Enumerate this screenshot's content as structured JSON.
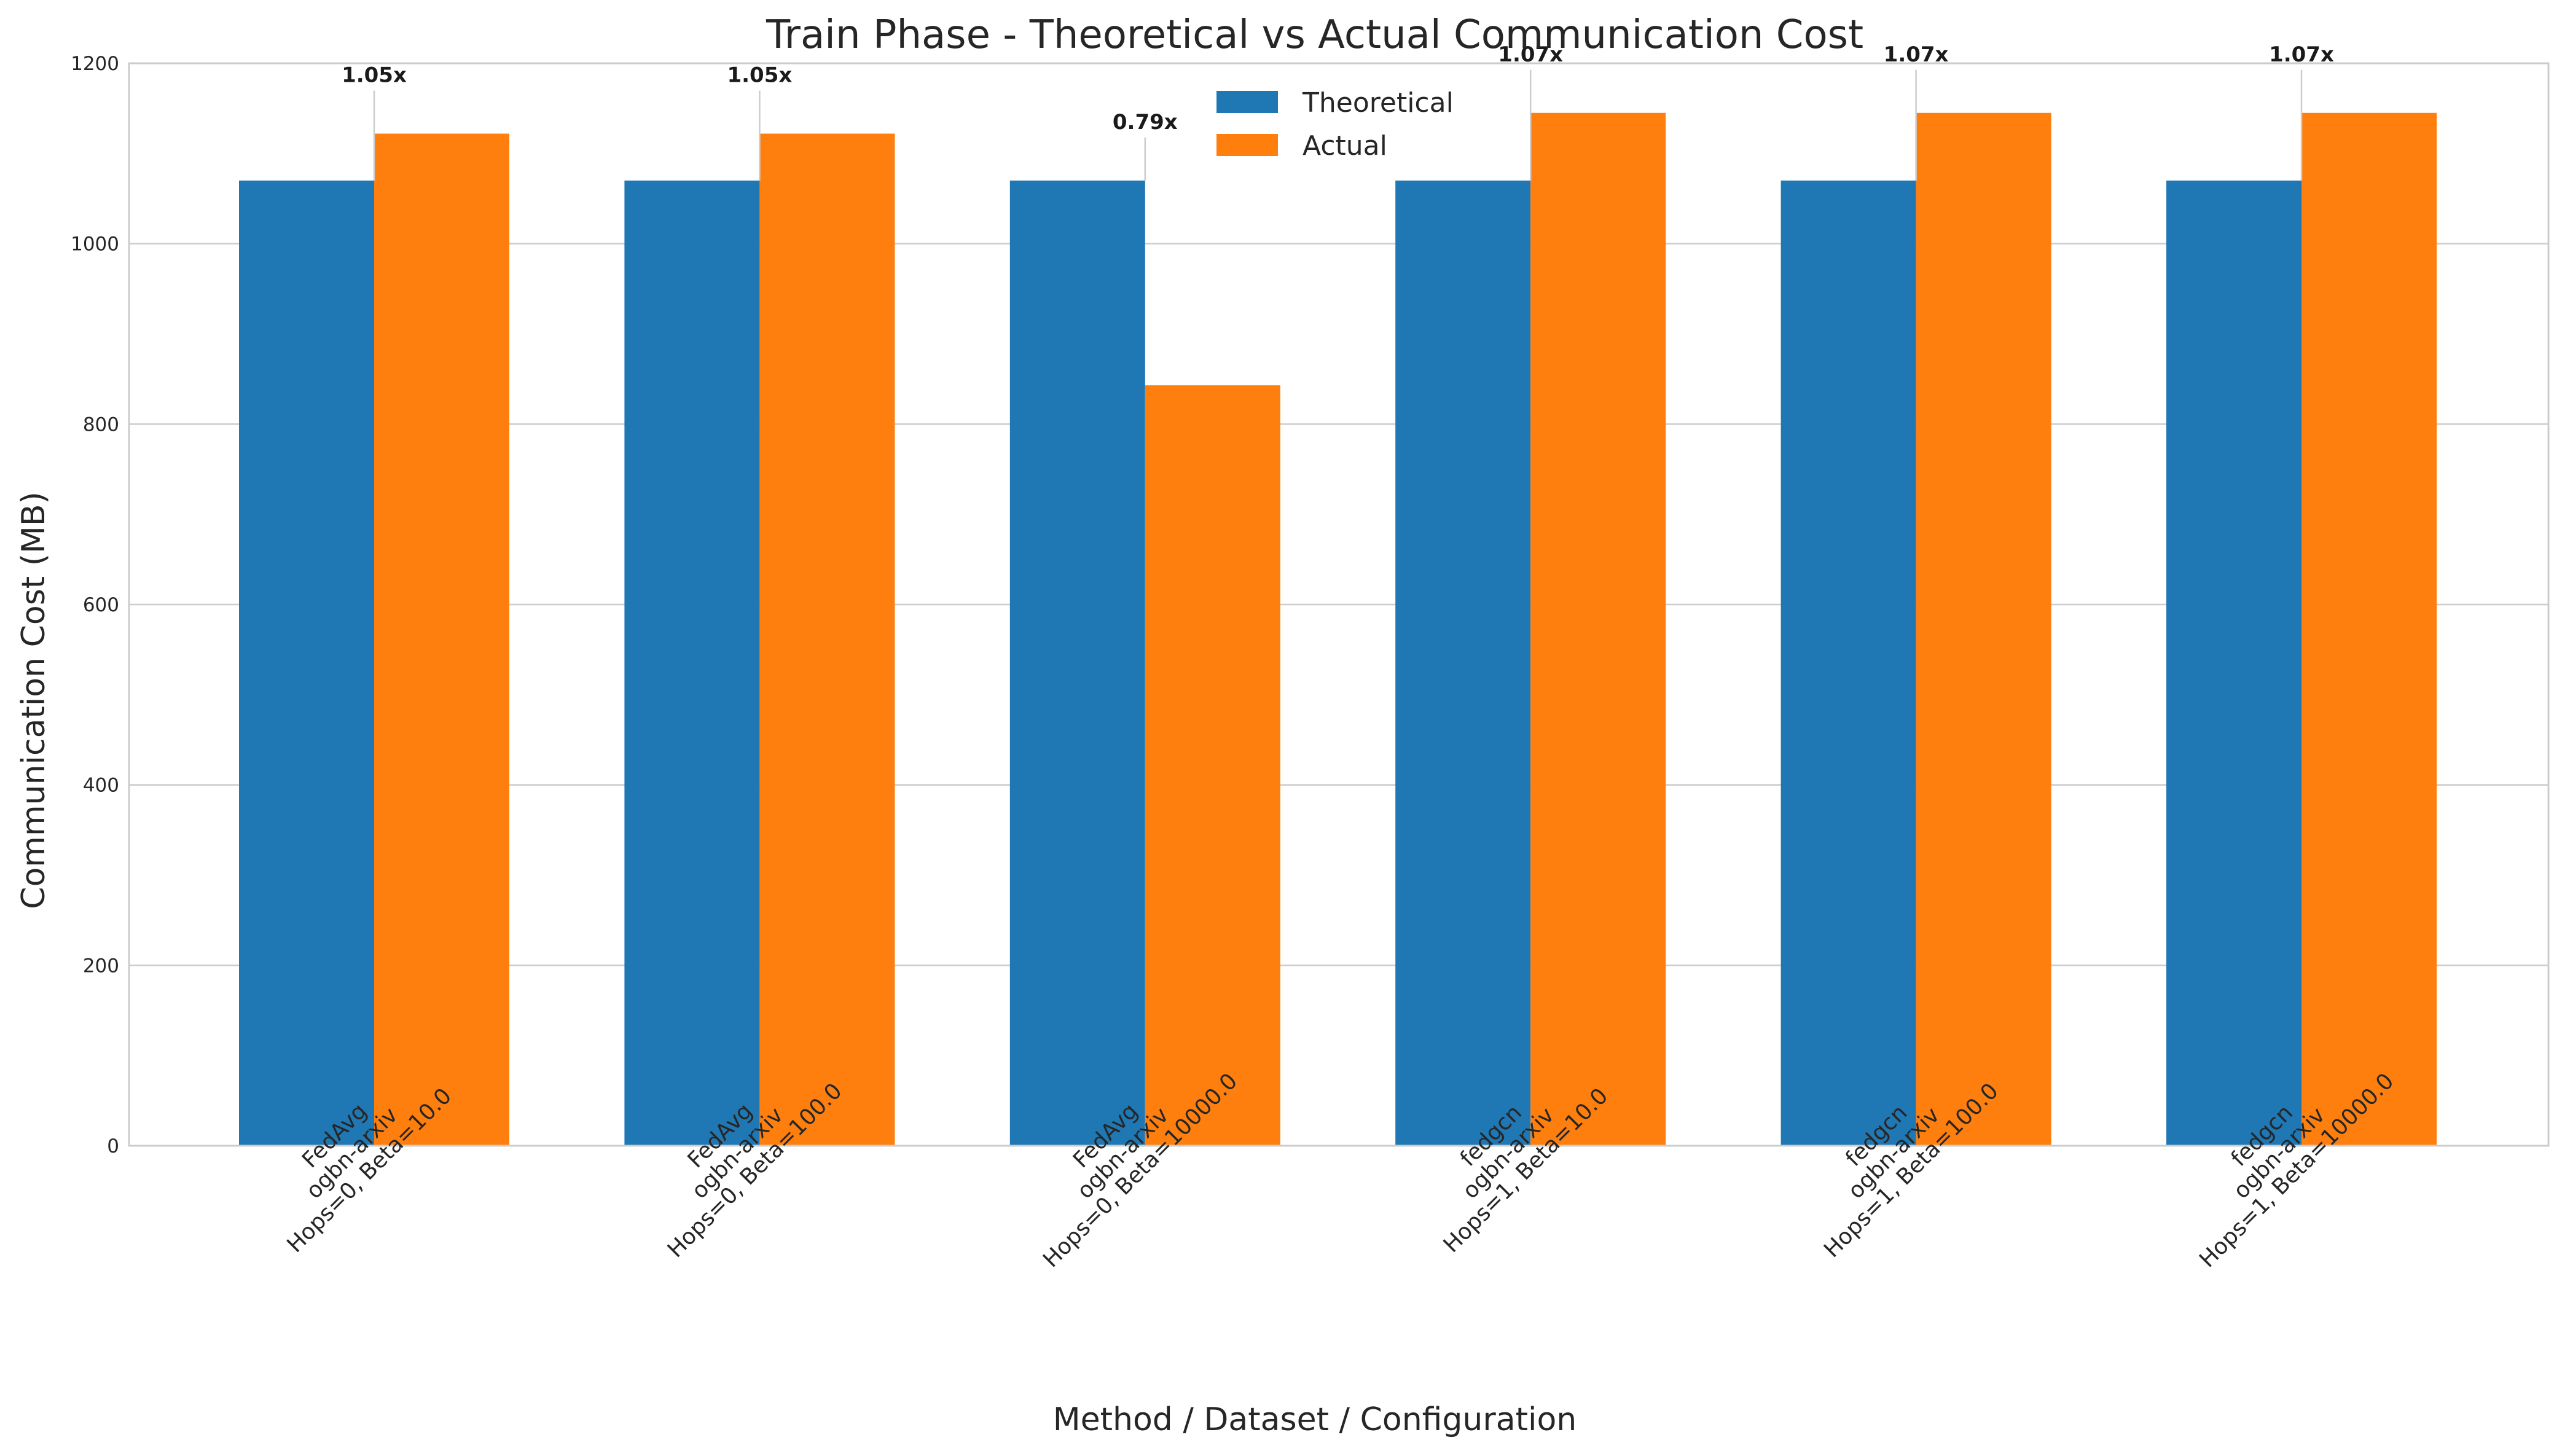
{
  "chart_data": {
    "type": "bar",
    "title": "Train Phase - Theoretical vs Actual Communication Cost",
    "xlabel": "Method / Dataset / Configuration",
    "ylabel": "Communication Cost (MB)",
    "ylim": [
      0,
      1200
    ],
    "yticks": [
      0,
      200,
      400,
      600,
      800,
      1000,
      1200
    ],
    "grid": true,
    "legend_position": "upper-center",
    "categories": [
      [
        "FedAvg",
        "ogbn-arxiv",
        "Hops=0, Beta=10.0"
      ],
      [
        "FedAvg",
        "ogbn-arxiv",
        "Hops=0, Beta=100.0"
      ],
      [
        "FedAvg",
        "ogbn-arxiv",
        "Hops=0, Beta=10000.0"
      ],
      [
        "fedgcn",
        "ogbn-arxiv",
        "Hops=1, Beta=10.0"
      ],
      [
        "fedgcn",
        "ogbn-arxiv",
        "Hops=1, Beta=100.0"
      ],
      [
        "fedgcn",
        "ogbn-arxiv",
        "Hops=1, Beta=10000.0"
      ]
    ],
    "series": [
      {
        "name": "Theoretical",
        "color": "#1f77b4",
        "values": [
          1070,
          1070,
          1070,
          1070,
          1070,
          1070
        ]
      },
      {
        "name": "Actual",
        "color": "#ff7f0e",
        "values": [
          1122,
          1122,
          843,
          1145,
          1145,
          1145
        ]
      }
    ],
    "annotations": [
      "1.05x",
      "1.05x",
      "0.79x",
      "1.07x",
      "1.07x",
      "1.07x"
    ]
  }
}
